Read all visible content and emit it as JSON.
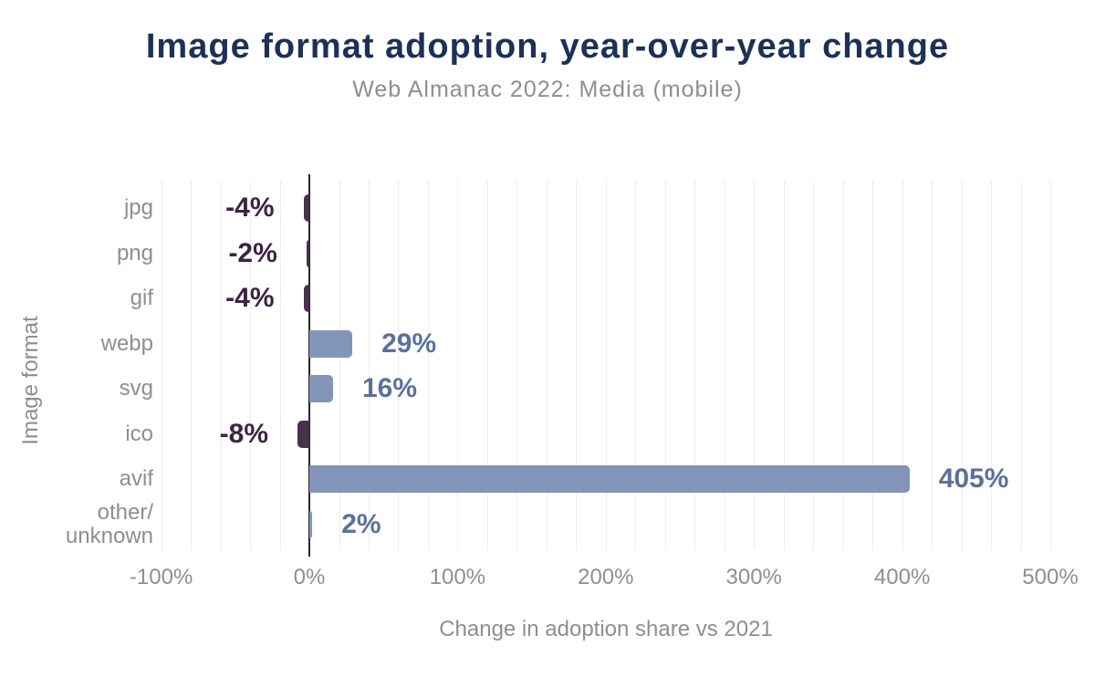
{
  "colors": {
    "background": "#ffffff",
    "title": "#1c3156",
    "secondary_text": "#8b8f93",
    "positive_bar": "#8295b9",
    "negative_bar": "#47314b",
    "positive_label": "#5b7199",
    "negative_label": "#3d2342",
    "axis_line": "#26262e",
    "gridline": "#ededf0"
  },
  "chart_data": {
    "type": "bar",
    "orientation": "horizontal",
    "title": "Image format adoption, year-over-year change",
    "subtitle": "Web Almanac 2022: Media (mobile)",
    "xlabel": "Change in adoption share vs 2021",
    "ylabel": "Image format",
    "categories": [
      "jpg",
      "png",
      "gif",
      "webp",
      "svg",
      "ico",
      "avif",
      "other/\nunknown"
    ],
    "values": [
      -4,
      -2,
      -4,
      29,
      16,
      -8,
      405,
      2
    ],
    "value_labels": [
      "-4%",
      "-2%",
      "-4%",
      "29%",
      "16%",
      "-8%",
      "405%",
      "2%"
    ],
    "xlim": [
      -100,
      500
    ],
    "xticks": [
      {
        "label": "-100%",
        "value": -100
      },
      {
        "label": "0%",
        "value": 0
      },
      {
        "label": "100%",
        "value": 100
      },
      {
        "label": "200%",
        "value": 200
      },
      {
        "label": "300%",
        "value": 300
      },
      {
        "label": "400%",
        "value": 400
      },
      {
        "label": "500%",
        "value": 500
      }
    ],
    "grid": true,
    "grid_minor_step": 20,
    "legend_position": "none"
  }
}
